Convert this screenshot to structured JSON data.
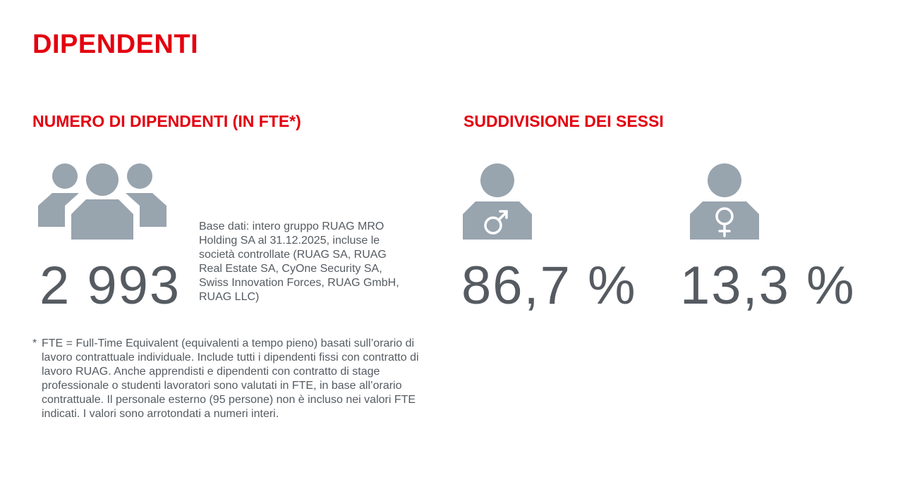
{
  "page": {
    "title": "DIPENDENTI"
  },
  "left_section": {
    "heading": "NUMERO DI DIPENDENTI (IN FTE*)",
    "icon": "people-group-icon",
    "value": "2 993",
    "note": "Base dati: intero gruppo RUAG MRO Holding SA al 31.12.2025, incluse le società controllate (RUAG SA, RUAG Real Estate SA, CyOne Security SA, Swiss Innovation Forces, RUAG GmbH, RUAG LLC)"
  },
  "right_section": {
    "heading": "SUDDIVISIONE DEI SESSI",
    "male": {
      "icon": "male-person-icon",
      "value": "86,7 %"
    },
    "female": {
      "icon": "female-person-icon",
      "value": "13,3 %"
    }
  },
  "footnote": {
    "marker": "*",
    "text": "FTE = Full-Time Equivalent (equivalenti a tempo pieno) basati sull’orario di lavoro contrattuale individuale. Include tutti i dipendenti fissi con contratto di lavoro RUAG. Anche apprendisti e dipendenti con contratto di stage professionale o studenti lavoratori sono valutati in FTE, in base all’orario contrattuale. Il personale esterno (95 persone) non è incluso nei valori FTE indicati. I valori sono arrotondati a numeri interi."
  },
  "colors": {
    "accent": "#e3000f",
    "icon": "#98a4ae",
    "text": "#555b61"
  }
}
